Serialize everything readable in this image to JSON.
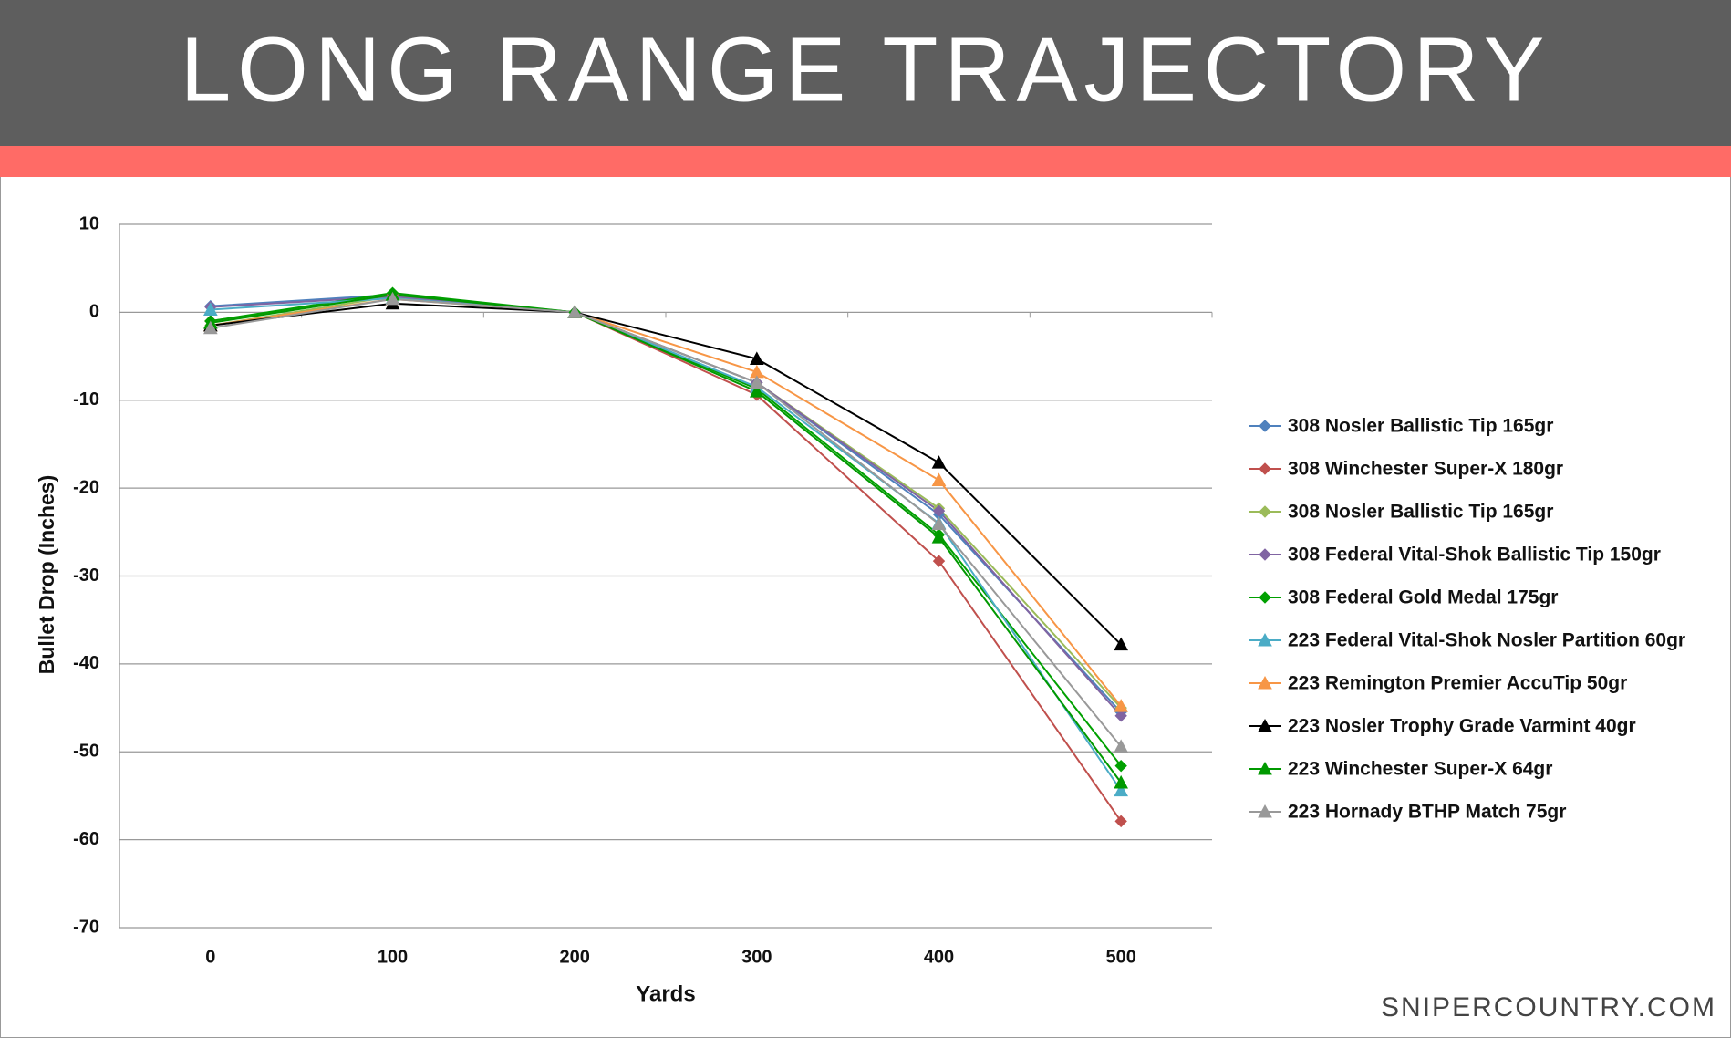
{
  "header": {
    "title": "LONG RANGE TRAJECTORY"
  },
  "watermark": "SNIPERCOUNTRY.COM",
  "chart_data": {
    "type": "line",
    "x_label": "Yards",
    "y_label": "Bullet Drop (Inches)",
    "categories": [
      "0",
      "100",
      "200",
      "300",
      "400",
      "500"
    ],
    "ylim": [
      -70,
      10
    ],
    "yticks": [
      10,
      0,
      -10,
      -20,
      -30,
      -40,
      -50,
      -60,
      -70
    ],
    "grid": true,
    "legend": "right",
    "series": [
      {
        "name": "308 Nosler Ballistic Tip 165gr",
        "color": "#4f81bd",
        "marker": "diamond",
        "values": [
          0.7,
          2,
          0,
          -8,
          -23,
          -45.5
        ]
      },
      {
        "name": "308 Winchester Super-X 180gr",
        "color": "#c0504d",
        "marker": "diamond",
        "values": [
          -1,
          2,
          0,
          -9.4,
          -28.3,
          -57.9
        ]
      },
      {
        "name": "308 Nosler Ballistic Tip 165gr",
        "color": "#9bbb59",
        "marker": "diamond",
        "values": [
          -1.5,
          1.8,
          0,
          -8,
          -22.3,
          -45
        ]
      },
      {
        "name": "308 Federal Vital-Shok Ballistic Tip 150gr",
        "color": "#8064a2",
        "marker": "diamond",
        "values": [
          0.6,
          1.8,
          0,
          -8,
          -22.6,
          -45.9
        ]
      },
      {
        "name": "308 Federal Gold Medal 175gr",
        "color": "#00a000",
        "marker": "diamond",
        "values": [
          -1,
          2.2,
          0,
          -8.7,
          -25.3,
          -51.6
        ]
      },
      {
        "name": "223 Federal Vital-Shok Nosler Partition 60gr",
        "color": "#4bacc6",
        "marker": "triangle",
        "values": [
          0.3,
          1.6,
          0,
          -8.5,
          -24,
          -54.4
        ]
      },
      {
        "name": "223 Remington Premier AccuTip 50gr",
        "color": "#f79646",
        "marker": "triangle",
        "values": [
          -1.5,
          1.5,
          0,
          -6.8,
          -19.1,
          -44.8
        ]
      },
      {
        "name": "223 Nosler Trophy Grade Varmint 40gr",
        "color": "#000000",
        "marker": "triangle",
        "values": [
          -1.5,
          1,
          0,
          -5.3,
          -17.1,
          -37.8
        ]
      },
      {
        "name": "223 Winchester Super-X 64gr",
        "color": "#009900",
        "marker": "triangle",
        "values": [
          -1.2,
          2,
          0,
          -9,
          -25.6,
          -53.5
        ]
      },
      {
        "name": "223 Hornady BTHP Match 75gr",
        "color": "#999999",
        "marker": "triangle",
        "values": [
          -1.8,
          1.5,
          0,
          -8,
          -24.1,
          -49.4
        ]
      }
    ]
  }
}
